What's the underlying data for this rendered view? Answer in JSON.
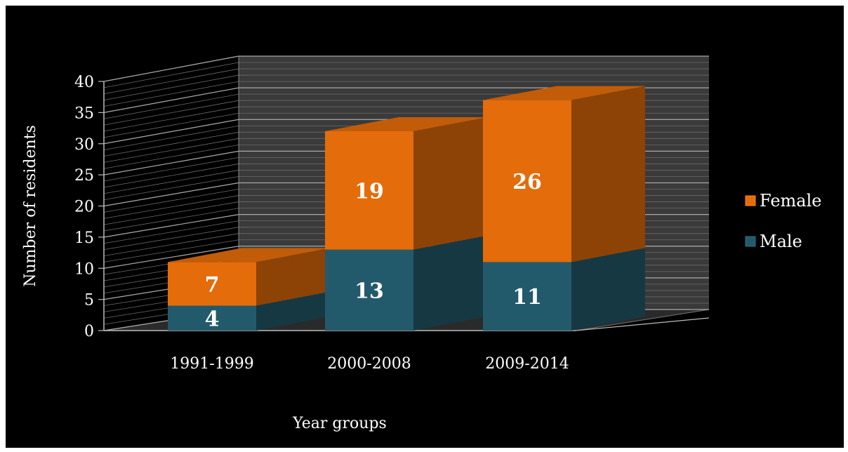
{
  "chart_data": {
    "type": "bar",
    "stacked": true,
    "three_d": true,
    "categories": [
      "1991-1999",
      "2000-2008",
      "2009-2014"
    ],
    "series": [
      {
        "name": "Male",
        "values": [
          4,
          13,
          11
        ],
        "color": "#235A6B"
      },
      {
        "name": "Female",
        "values": [
          7,
          19,
          26
        ],
        "color": "#E46C0A"
      }
    ],
    "xlabel": "Year groups",
    "ylabel": "Number of residents",
    "ylim": [
      0,
      40
    ],
    "yticks": [
      0,
      5,
      10,
      15,
      20,
      25,
      30,
      35,
      40
    ],
    "grid": true,
    "legend_position": "right",
    "background": "#000000"
  }
}
